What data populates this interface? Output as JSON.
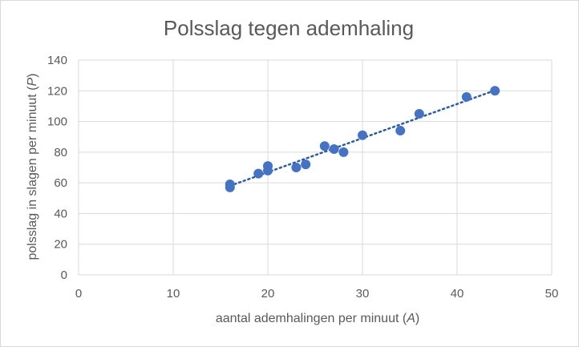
{
  "chart_data": {
    "type": "scatter",
    "title": "Polsslag tegen ademhaling",
    "xlabel": {
      "pre": "aantal ademhalingen per minuut (",
      "var": "A",
      "post": ")"
    },
    "ylabel": {
      "pre": "polsslag in slagen per minuut (",
      "var": "P",
      "post": ")"
    },
    "xlim": [
      0,
      50
    ],
    "ylim": [
      0,
      140
    ],
    "x_ticks": [
      0,
      10,
      20,
      30,
      40,
      50
    ],
    "y_ticks": [
      0,
      20,
      40,
      60,
      80,
      100,
      120,
      140
    ],
    "grid": true,
    "trendline": {
      "type": "linear",
      "style": "dotted",
      "x_range": [
        16,
        44
      ]
    },
    "points": [
      {
        "x": 16,
        "y": 59
      },
      {
        "x": 16,
        "y": 57
      },
      {
        "x": 19,
        "y": 66
      },
      {
        "x": 20,
        "y": 71
      },
      {
        "x": 20,
        "y": 68
      },
      {
        "x": 23,
        "y": 70
      },
      {
        "x": 24,
        "y": 72
      },
      {
        "x": 26,
        "y": 84
      },
      {
        "x": 27,
        "y": 82
      },
      {
        "x": 28,
        "y": 80
      },
      {
        "x": 30,
        "y": 91
      },
      {
        "x": 34,
        "y": 94
      },
      {
        "x": 36,
        "y": 105
      },
      {
        "x": 41,
        "y": 116
      },
      {
        "x": 44,
        "y": 120
      }
    ],
    "colors": {
      "marker": "#4472c4",
      "trendline": "#2e5d9e",
      "grid": "#d9d9d9",
      "text": "#595959"
    }
  }
}
